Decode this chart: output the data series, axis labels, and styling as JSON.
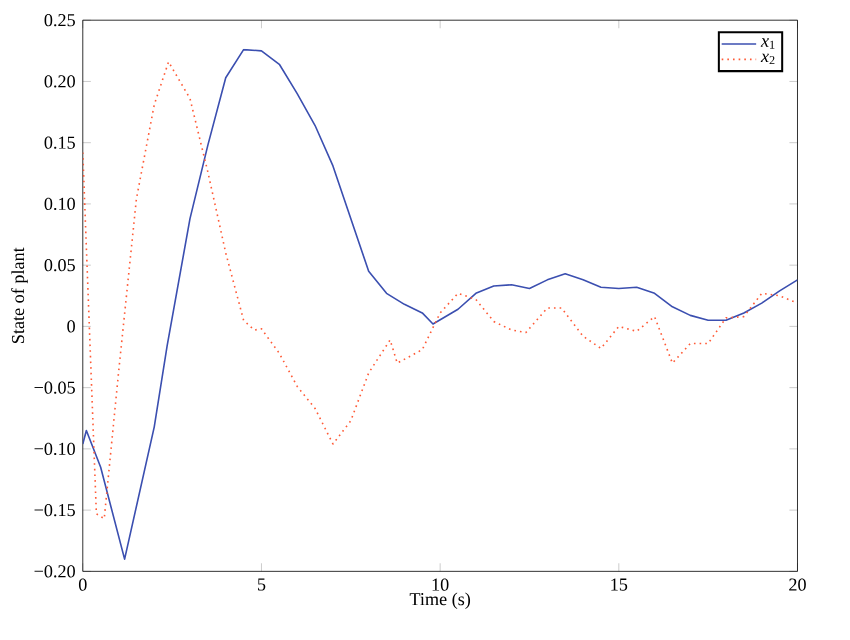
{
  "chart_data": {
    "type": "line",
    "xlabel": "Time (s)",
    "ylabel": "State of plant",
    "xlim": [
      0,
      20
    ],
    "xticks": [
      0,
      5,
      10,
      15,
      20
    ],
    "ylim": [
      -0.2,
      0.25
    ],
    "yticks": [
      {
        "value": -0.2,
        "label": "−0.20"
      },
      {
        "value": -0.15,
        "label": "−0.15"
      },
      {
        "value": -0.1,
        "label": "−0.10"
      },
      {
        "value": -0.05,
        "label": "−0.05"
      },
      {
        "value": 0,
        "label": "0"
      },
      {
        "value": 0.05,
        "label": "0.05"
      },
      {
        "value": 0.1,
        "label": "0.10"
      },
      {
        "value": 0.15,
        "label": "0.15"
      },
      {
        "value": 0.2,
        "label": "0.20"
      },
      {
        "value": 0.25,
        "label": "0.25"
      }
    ],
    "legend": "top right",
    "grid": false,
    "series": [
      {
        "name": "*x*$_{1}$",
        "color": "#3b4fb0",
        "line_style": "solid",
        "x": [
          0,
          0.1,
          0.5,
          1.17,
          2,
          2.36,
          3,
          3.5,
          4,
          4.5,
          5,
          5.5,
          6,
          6.5,
          7,
          7.5,
          8,
          8.5,
          9,
          9.5,
          9.8,
          10.5,
          11,
          11.5,
          12,
          12.5,
          13,
          13.5,
          14,
          14.5,
          15,
          15.5,
          16,
          16.5,
          17,
          17.5,
          18,
          18.5,
          19,
          19.5,
          20
        ],
        "values": [
          -0.096,
          -0.085,
          -0.115,
          -0.19,
          -0.082,
          -0.016,
          0.088,
          0.148,
          0.203,
          0.226,
          0.225,
          0.214,
          0.19,
          0.164,
          0.131,
          0.088,
          0.045,
          0.027,
          0.018,
          0.011,
          0.002,
          0.014,
          0.027,
          0.033,
          0.034,
          0.031,
          0.038,
          0.043,
          0.038,
          0.032,
          0.031,
          0.032,
          0.027,
          0.016,
          0.009,
          0.005,
          0.005,
          0.011,
          0.019,
          0.029,
          0.038
        ]
      },
      {
        "name": "*x*$_{2}$",
        "color": "#ff5a36",
        "line_style": "dotted",
        "x": [
          0,
          0.38,
          0.6,
          1,
          1.5,
          2,
          2.4,
          3,
          3.5,
          4,
          4.5,
          4.8,
          5,
          5.5,
          6,
          6.5,
          7,
          7.5,
          8,
          8.6,
          8.8,
          9.5,
          10,
          10.5,
          11,
          11.5,
          12,
          12.4,
          13,
          13.4,
          14,
          14.5,
          15,
          15.5,
          16,
          16.5,
          17,
          17.5,
          18,
          18.5,
          19,
          19.5,
          20
        ],
        "values": [
          0.142,
          -0.153,
          -0.157,
          -0.038,
          0.104,
          0.181,
          0.216,
          0.186,
          0.126,
          0.06,
          0.005,
          -0.003,
          -0.002,
          -0.022,
          -0.049,
          -0.067,
          -0.096,
          -0.077,
          -0.038,
          -0.011,
          -0.03,
          -0.019,
          0.011,
          0.027,
          0.022,
          0.004,
          -0.003,
          -0.005,
          0.015,
          0.015,
          -0.008,
          -0.018,
          0,
          -0.004,
          0.008,
          -0.03,
          -0.014,
          -0.014,
          0.007,
          0.008,
          0.027,
          0.025,
          0.019
        ]
      }
    ]
  }
}
